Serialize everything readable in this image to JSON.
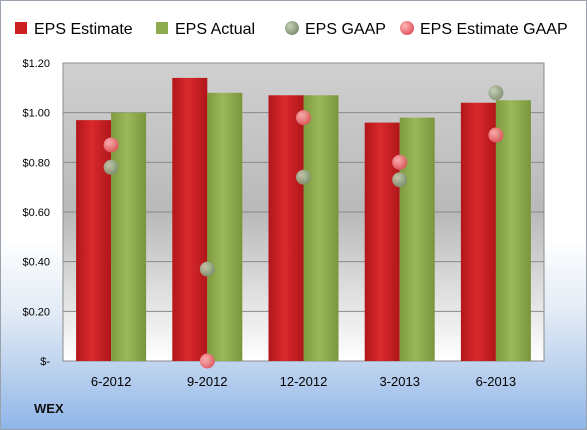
{
  "ticker": "WEX",
  "colors": {
    "estimate": "#cc1f22",
    "actual": "#8fab4f",
    "gaap": "#9aa88a",
    "estimate_gaap": "#f08a8a"
  },
  "chart_data": {
    "type": "bar",
    "categories": [
      "6-2012",
      "9-2012",
      "12-2012",
      "3-2013",
      "6-2013"
    ],
    "series": [
      {
        "name": "EPS Estimate",
        "kind": "bar",
        "values": [
          0.97,
          1.14,
          1.07,
          0.96,
          1.04
        ]
      },
      {
        "name": "EPS Actual",
        "kind": "bar",
        "values": [
          1.0,
          1.08,
          1.07,
          0.98,
          1.05
        ]
      },
      {
        "name": "EPS GAAP",
        "kind": "point",
        "values": [
          0.78,
          0.37,
          0.74,
          0.73,
          1.08
        ]
      },
      {
        "name": "EPS Estimate GAAP",
        "kind": "point",
        "values": [
          0.87,
          0.0,
          0.98,
          0.8,
          0.91
        ]
      }
    ],
    "yticks": [
      "$-",
      "$0.20",
      "$0.40",
      "$0.60",
      "$0.80",
      "$1.00",
      "$1.20"
    ],
    "ytick_values": [
      0,
      0.2,
      0.4,
      0.6,
      0.8,
      1.0,
      1.2
    ],
    "ylim": [
      0,
      1.2
    ],
    "grid": true,
    "legend_position": "top"
  }
}
